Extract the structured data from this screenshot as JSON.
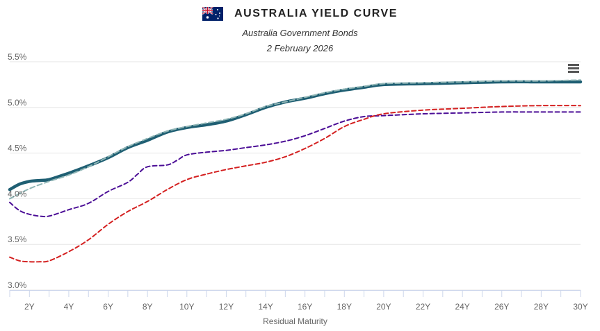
{
  "header": {
    "title": "AUSTRALIA YIELD CURVE",
    "subtitle": "Australia Government Bonds",
    "date": "2 February 2026",
    "flag_icon": "australia-flag-icon"
  },
  "menu": {
    "icon": "hamburger-menu-icon"
  },
  "colors": {
    "current": "#1f5f73",
    "current_dash": "#8fb5b5",
    "series_purple": "#4b0d96",
    "series_red": "#d42020",
    "grid": "#e6e6e6",
    "axis": "#ccd6eb"
  },
  "chart_data": {
    "type": "line",
    "title": "AUSTRALIA YIELD CURVE",
    "subtitle": "Australia Government Bonds",
    "xlabel": "Residual Maturity",
    "ylabel": "",
    "xlim": [
      1,
      30
    ],
    "ylim": [
      3.0,
      5.5
    ],
    "y_ticks": [
      "3.0%",
      "3.5%",
      "4.0%",
      "4.5%",
      "5.0%",
      "5.5%"
    ],
    "y_tick_values": [
      3.0,
      3.5,
      4.0,
      4.5,
      5.0,
      5.5
    ],
    "x_ticks": [
      "2Y",
      "4Y",
      "6Y",
      "8Y",
      "10Y",
      "12Y",
      "14Y",
      "16Y",
      "18Y",
      "20Y",
      "22Y",
      "24Y",
      "26Y",
      "28Y",
      "30Y"
    ],
    "x_tick_values": [
      2,
      4,
      6,
      8,
      10,
      12,
      14,
      16,
      18,
      20,
      22,
      24,
      26,
      28,
      30
    ],
    "grid": true,
    "series": [
      {
        "style": "solid-thick",
        "x": [
          1,
          1.5,
          2,
          2.5,
          3,
          4,
          5,
          6,
          7,
          8,
          9,
          10,
          11,
          12,
          13,
          14,
          15,
          16,
          17,
          18,
          19,
          20,
          22,
          24,
          26,
          28,
          30
        ],
        "y": [
          4.1,
          4.16,
          4.19,
          4.2,
          4.21,
          4.28,
          4.36,
          4.45,
          4.56,
          4.64,
          4.73,
          4.78,
          4.81,
          4.85,
          4.92,
          5.0,
          5.06,
          5.1,
          5.15,
          5.19,
          5.22,
          5.25,
          5.26,
          5.27,
          5.28,
          5.28,
          5.28
        ]
      },
      {
        "style": "dashed-light",
        "x": [
          1,
          2,
          3,
          4,
          5,
          6,
          7,
          8,
          9,
          10,
          11,
          12,
          13,
          14,
          15,
          16,
          17,
          18,
          19,
          20,
          22,
          24,
          26,
          28,
          30
        ],
        "y": [
          4.0,
          4.11,
          4.19,
          4.26,
          4.35,
          4.46,
          4.57,
          4.66,
          4.74,
          4.79,
          4.83,
          4.87,
          4.93,
          5.01,
          5.06,
          5.11,
          5.16,
          5.2,
          5.23,
          5.26,
          5.27,
          5.28,
          5.29,
          5.29,
          5.3
        ]
      },
      {
        "style": "dashed-purple",
        "x": [
          1,
          1.5,
          2,
          2.5,
          3,
          4,
          5,
          6,
          7,
          7.5,
          8,
          9,
          9.5,
          10,
          11,
          12,
          13,
          14,
          15,
          16,
          17,
          18,
          19,
          20,
          22,
          24,
          26,
          28,
          30
        ],
        "y": [
          3.96,
          3.87,
          3.83,
          3.81,
          3.81,
          3.88,
          3.95,
          4.08,
          4.18,
          4.27,
          4.35,
          4.37,
          4.42,
          4.48,
          4.51,
          4.53,
          4.56,
          4.59,
          4.63,
          4.69,
          4.77,
          4.85,
          4.9,
          4.91,
          4.93,
          4.94,
          4.95,
          4.95,
          4.95
        ]
      },
      {
        "style": "dashed-red",
        "x": [
          1,
          1.5,
          2,
          2.5,
          3,
          4,
          5,
          6,
          7,
          8,
          9,
          10,
          11,
          12,
          13,
          14,
          15,
          16,
          17,
          18,
          19,
          20,
          22,
          24,
          26,
          28,
          30
        ],
        "y": [
          3.36,
          3.32,
          3.31,
          3.31,
          3.32,
          3.42,
          3.55,
          3.72,
          3.86,
          3.97,
          4.1,
          4.21,
          4.27,
          4.32,
          4.36,
          4.4,
          4.46,
          4.55,
          4.66,
          4.79,
          4.87,
          4.93,
          4.97,
          4.99,
          5.01,
          5.02,
          5.02
        ]
      }
    ]
  }
}
